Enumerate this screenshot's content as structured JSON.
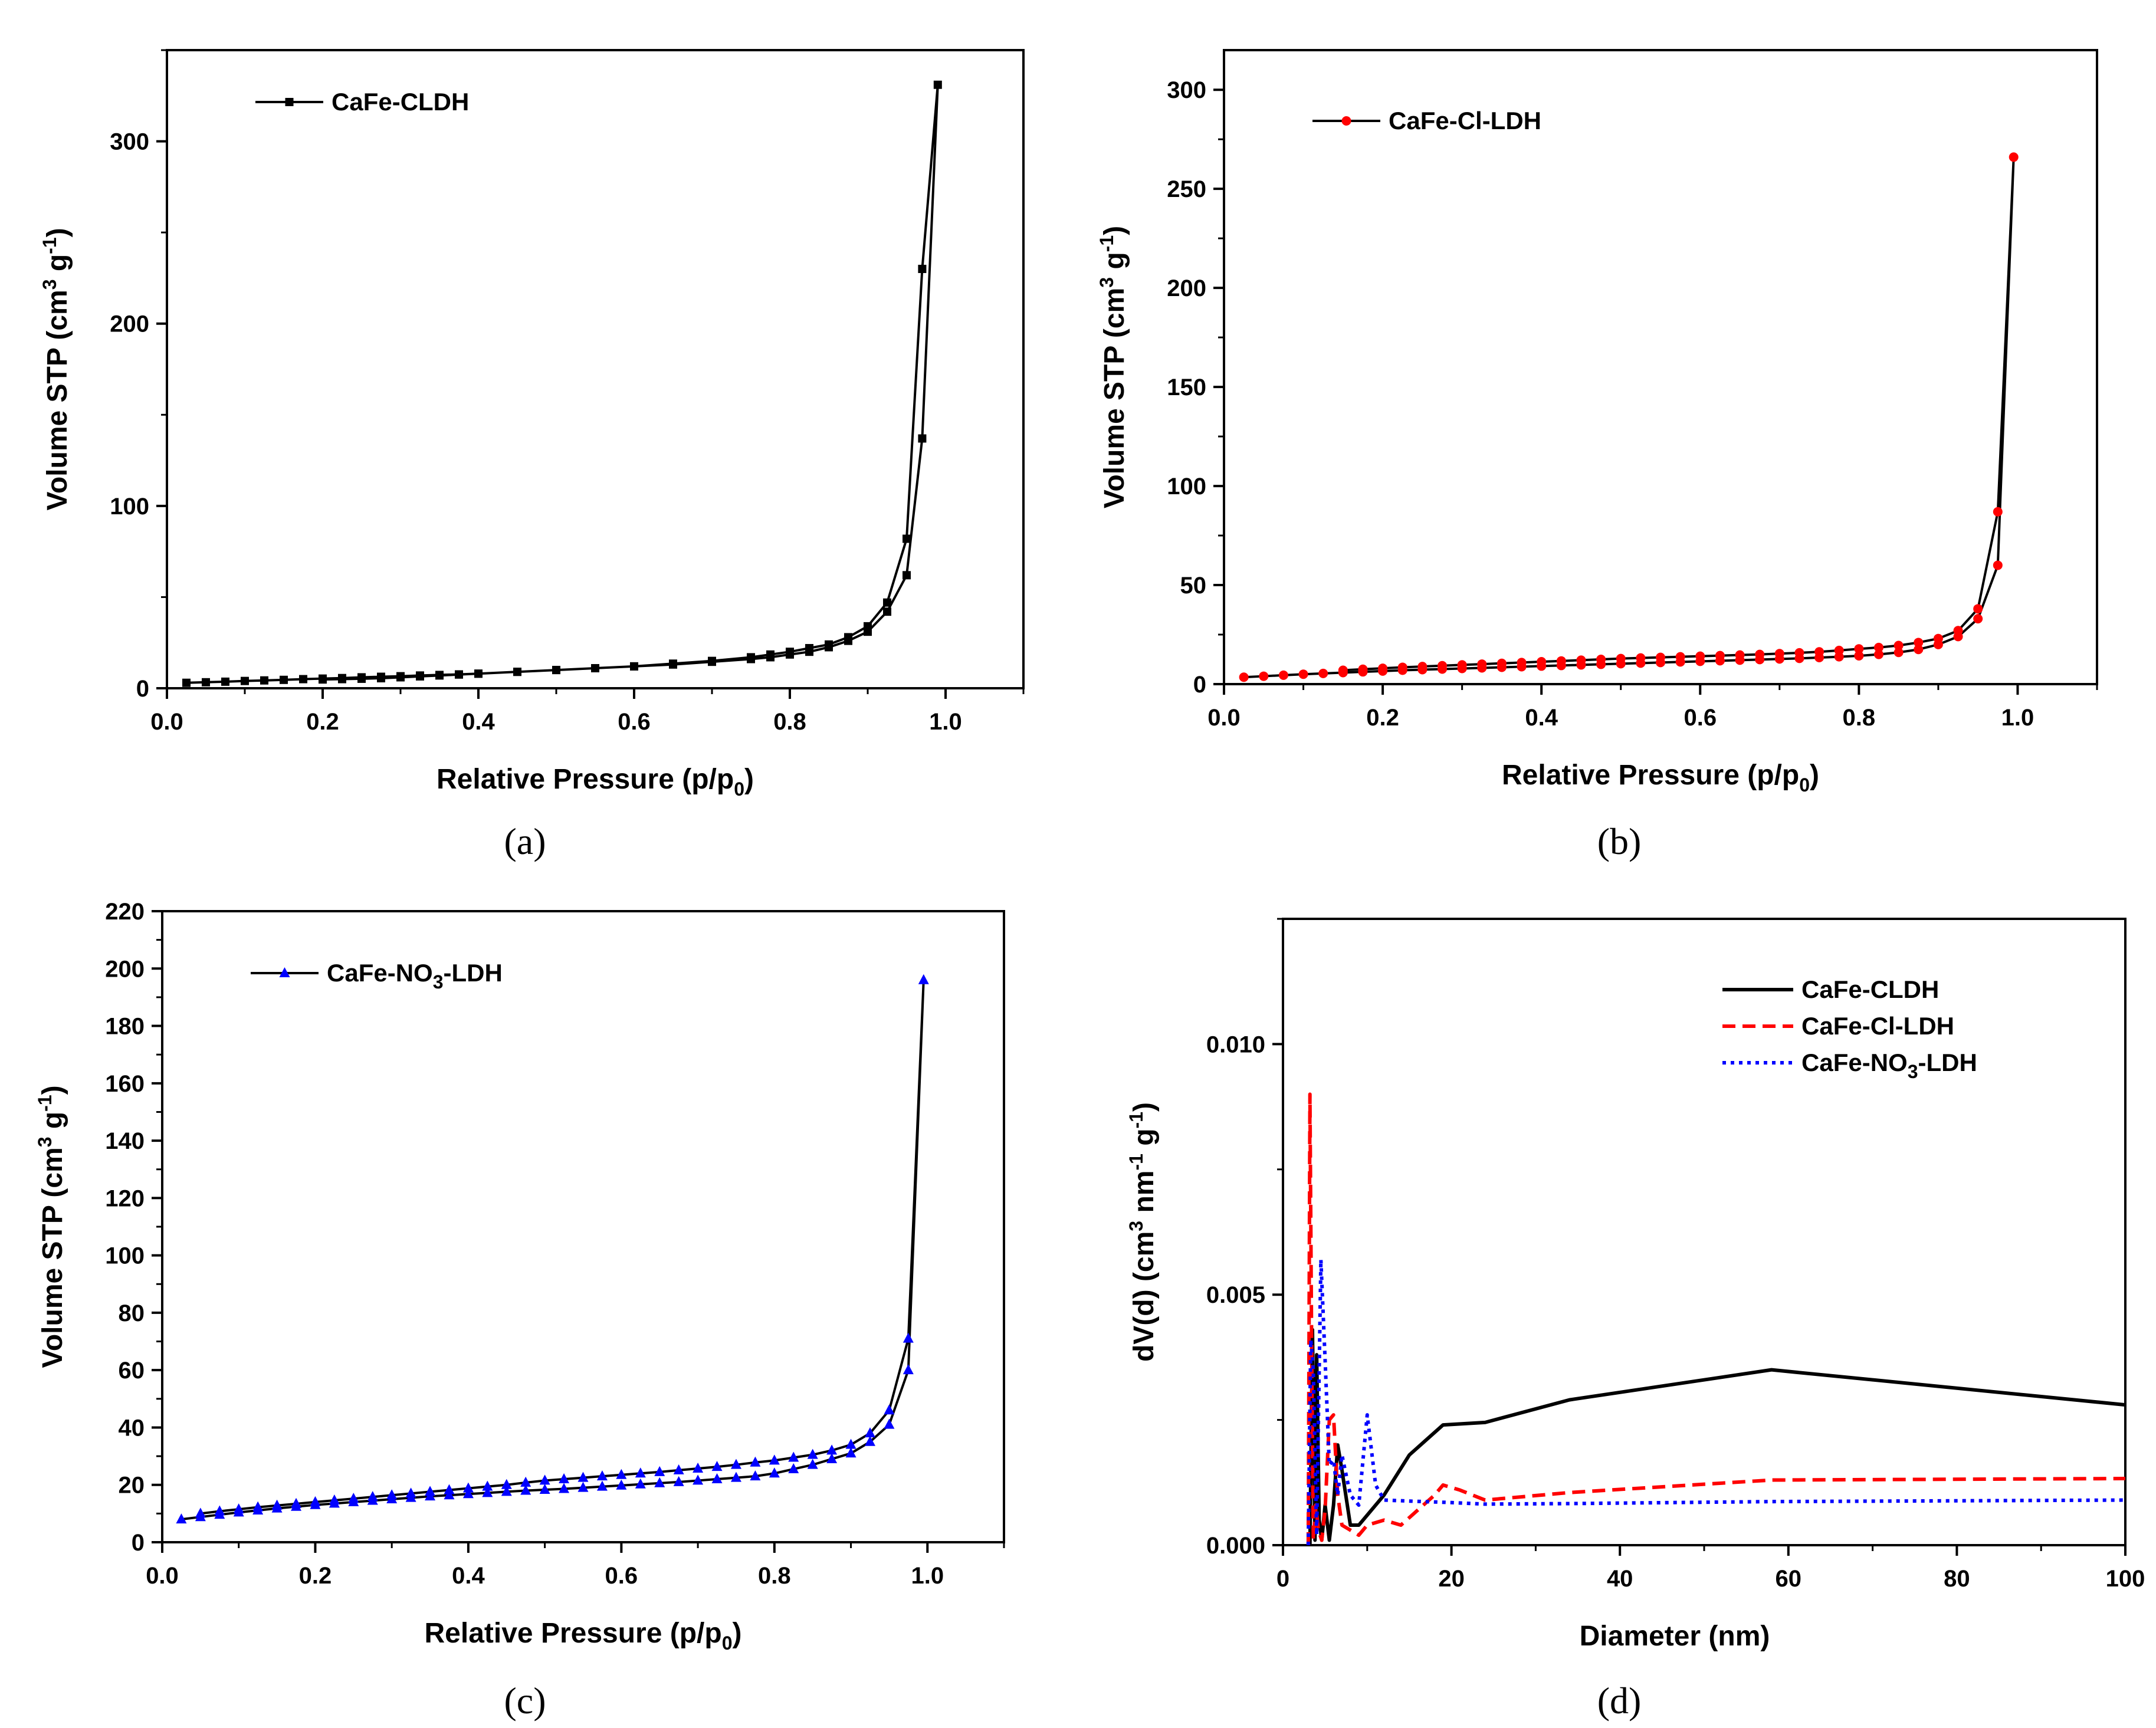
{
  "chart_data": [
    {
      "panel": "(a)",
      "type": "line",
      "xlabel": "Relative Pressure (p/p0)",
      "ylabel": "Volume STP (cm3 g-1)",
      "xlim": [
        0.0,
        1.1
      ],
      "ylim": [
        0,
        350
      ],
      "xticks": [
        "0.0",
        "0.2",
        "0.4",
        "0.6",
        "0.8",
        "1.0"
      ],
      "yticks": [
        "0",
        "100",
        "200",
        "300"
      ],
      "marker": "square",
      "color": "#000000",
      "legend": "top-left",
      "series": [
        {
          "name": "CaFe-CLDH",
          "label": "CaFe-CLDH",
          "x": [
            0.025,
            0.05,
            0.075,
            0.1,
            0.125,
            0.15,
            0.175,
            0.2,
            0.225,
            0.25,
            0.275,
            0.3,
            0.325,
            0.35,
            0.375,
            0.4,
            0.45,
            0.5,
            0.55,
            0.6,
            0.65,
            0.7,
            0.75,
            0.775,
            0.8,
            0.825,
            0.85,
            0.875,
            0.9,
            0.925,
            0.95,
            0.97,
            0.99,
            0.97,
            0.95,
            0.925,
            0.9,
            0.875,
            0.85,
            0.825,
            0.8,
            0.775,
            0.75,
            0.7,
            0.65,
            0.6,
            0.55,
            0.5,
            0.45,
            0.4,
            0.375,
            0.35,
            0.325,
            0.3,
            0.275,
            0.25,
            0.225,
            0.2
          ],
          "y": [
            3,
            3.3,
            3.6,
            4,
            4.3,
            4.6,
            5,
            5.3,
            5.6,
            6,
            6.3,
            6.6,
            7,
            7.3,
            7.6,
            8,
            9,
            10,
            11,
            12,
            13,
            14.5,
            16,
            17,
            18.5,
            20,
            22.5,
            26,
            31,
            42,
            62,
            137,
            331,
            230,
            82,
            47,
            34,
            28,
            24,
            22,
            20,
            18.5,
            17,
            15,
            13.5,
            12,
            11,
            10,
            9,
            8,
            7.5,
            7,
            6.5,
            6,
            5.5,
            5.2,
            5,
            4.8
          ]
        }
      ]
    },
    {
      "panel": "(b)",
      "type": "line",
      "xlabel": "Relative Pressure (p/p0)",
      "ylabel": "Volume STP (cm3 g-1)",
      "xlim": [
        0.0,
        1.1
      ],
      "ylim": [
        0,
        320
      ],
      "xticks": [
        "0.0",
        "0.2",
        "0.4",
        "0.6",
        "0.8",
        "1.0"
      ],
      "yticks": [
        "0",
        "50",
        "100",
        "150",
        "200",
        "250",
        "300"
      ],
      "marker": "circle",
      "color": "#ff0000",
      "legend": "top-left",
      "series": [
        {
          "name": "CaFe-Cl-LDH",
          "label": "CaFe-Cl-LDH",
          "x": [
            0.025,
            0.05,
            0.075,
            0.1,
            0.125,
            0.15,
            0.175,
            0.2,
            0.225,
            0.25,
            0.275,
            0.3,
            0.325,
            0.35,
            0.375,
            0.4,
            0.425,
            0.45,
            0.475,
            0.5,
            0.525,
            0.55,
            0.575,
            0.6,
            0.625,
            0.65,
            0.675,
            0.7,
            0.725,
            0.75,
            0.775,
            0.8,
            0.825,
            0.85,
            0.875,
            0.9,
            0.925,
            0.95,
            0.975,
            0.995,
            0.975,
            0.95,
            0.925,
            0.9,
            0.875,
            0.85,
            0.825,
            0.8,
            0.775,
            0.75,
            0.725,
            0.7,
            0.675,
            0.65,
            0.625,
            0.6,
            0.575,
            0.55,
            0.525,
            0.5,
            0.475,
            0.45,
            0.425,
            0.4,
            0.375,
            0.35,
            0.325,
            0.3,
            0.275,
            0.25,
            0.225,
            0.2,
            0.175,
            0.15
          ],
          "y": [
            3.5,
            4,
            4.5,
            5,
            5.4,
            5.8,
            6.2,
            6.6,
            7,
            7.3,
            7.6,
            7.9,
            8.2,
            8.5,
            8.8,
            9.1,
            9.4,
            9.7,
            10,
            10.3,
            10.6,
            10.9,
            11.2,
            11.5,
            11.8,
            12.1,
            12.4,
            12.7,
            13,
            13.4,
            13.8,
            14.3,
            15,
            16,
            17.5,
            20,
            24,
            33,
            60,
            266,
            87,
            38,
            27,
            23,
            21,
            19.5,
            18.5,
            17.8,
            17,
            16.3,
            15.8,
            15.4,
            15,
            14.7,
            14.4,
            14.1,
            13.8,
            13.5,
            13.2,
            12.9,
            12.5,
            12.1,
            11.7,
            11.3,
            10.9,
            10.5,
            10.1,
            9.7,
            9.3,
            8.9,
            8.5,
            8,
            7.5,
            7
          ]
        }
      ]
    },
    {
      "panel": "(c)",
      "type": "line",
      "xlabel": "Relative Pressure (p/p0)",
      "ylabel": "Volume STP (cm3 g-1)",
      "xlim": [
        0.0,
        1.1
      ],
      "ylim": [
        0,
        220
      ],
      "xticks": [
        "0.0",
        "0.2",
        "0.4",
        "0.6",
        "0.8",
        "1.0"
      ],
      "yticks": [
        "0",
        "20",
        "40",
        "60",
        "80",
        "100",
        "120",
        "140",
        "160",
        "180",
        "200",
        "220"
      ],
      "marker": "triangle",
      "color": "#0000ff",
      "legend": "top-left",
      "series": [
        {
          "name": "CaFe-NO3-LDH",
          "label": "CaFe-NO",
          "label_sub": "3",
          "label_tail": "-LDH",
          "x": [
            0.025,
            0.05,
            0.075,
            0.1,
            0.125,
            0.15,
            0.175,
            0.2,
            0.225,
            0.25,
            0.275,
            0.3,
            0.325,
            0.35,
            0.375,
            0.4,
            0.425,
            0.45,
            0.475,
            0.5,
            0.525,
            0.55,
            0.575,
            0.6,
            0.625,
            0.65,
            0.675,
            0.7,
            0.725,
            0.75,
            0.775,
            0.8,
            0.825,
            0.85,
            0.875,
            0.9,
            0.925,
            0.95,
            0.975,
            0.995,
            0.975,
            0.95,
            0.925,
            0.9,
            0.875,
            0.85,
            0.825,
            0.8,
            0.775,
            0.75,
            0.725,
            0.7,
            0.675,
            0.65,
            0.625,
            0.6,
            0.575,
            0.55,
            0.525,
            0.5,
            0.475,
            0.45,
            0.425,
            0.4,
            0.375,
            0.35,
            0.325,
            0.3,
            0.275,
            0.25,
            0.225,
            0.2,
            0.175,
            0.15,
            0.125,
            0.1,
            0.075,
            0.05
          ],
          "y": [
            8,
            8.8,
            9.6,
            10.4,
            11.1,
            11.8,
            12.4,
            13,
            13.5,
            14,
            14.5,
            15,
            15.5,
            16,
            16.4,
            16.8,
            17.2,
            17.6,
            18,
            18.3,
            18.6,
            19,
            19.4,
            19.8,
            20.2,
            20.6,
            21,
            21.5,
            22,
            22.5,
            23,
            24,
            25.5,
            27,
            29,
            31,
            35,
            41,
            60,
            196,
            71,
            46,
            38,
            34,
            32,
            30.5,
            29.5,
            28.5,
            27.8,
            27,
            26.3,
            25.7,
            25.1,
            24.5,
            24,
            23.5,
            23,
            22.5,
            22,
            21.5,
            20.8,
            20,
            19.4,
            18.8,
            18.2,
            17.6,
            17,
            16.4,
            15.8,
            15.2,
            14.6,
            14,
            13.4,
            12.8,
            12.2,
            11.5,
            10.8,
            10
          ]
        }
      ]
    },
    {
      "panel": "(d)",
      "type": "line",
      "xlabel": "Diameter (nm)",
      "ylabel": "dV(d) (cm3 nm-1 g-1)",
      "xlim": [
        0,
        100
      ],
      "ylim": [
        0,
        0.0125
      ],
      "xticks": [
        "0",
        "20",
        "40",
        "60",
        "80",
        "100"
      ],
      "yticks": [
        "0.000",
        "0.005",
        "0.010"
      ],
      "legend": "top-right",
      "series": [
        {
          "name": "CaFe-CLDH",
          "label": "CaFe-CLDH",
          "style": "solid",
          "color": "#000000",
          "x": [
            3.2,
            3.5,
            3.8,
            4.0,
            4.3,
            4.6,
            5.0,
            5.5,
            6.0,
            6.5,
            7.0,
            8.0,
            9.0,
            10.0,
            12.0,
            15.0,
            19.0,
            24.0,
            34.0,
            58.0,
            100.0
          ],
          "y": [
            0.0,
            0.0043,
            0.0001,
            0.0038,
            0.0005,
            0.0001,
            0.0008,
            0.0001,
            0.0008,
            0.002,
            0.0015,
            0.0004,
            0.0004,
            0.0006,
            0.001,
            0.0018,
            0.0024,
            0.00245,
            0.0029,
            0.0035,
            0.0028
          ]
        },
        {
          "name": "CaFe-Cl-LDH",
          "label": "CaFe-Cl-LDH",
          "style": "dashed",
          "color": "#ff0000",
          "x": [
            3.0,
            3.2,
            3.4,
            3.6,
            3.9,
            4.2,
            4.6,
            5.0,
            5.5,
            6.0,
            6.5,
            7.0,
            8.0,
            9.0,
            10.0,
            12.0,
            14.0,
            16.0,
            18.0,
            19.0,
            21.0,
            24.0,
            34.0,
            58.0,
            100.0
          ],
          "y": [
            0.0,
            0.009,
            0.004,
            0.0001,
            0.0008,
            0.0003,
            0.0001,
            0.0007,
            0.0025,
            0.0026,
            0.001,
            0.0004,
            0.0003,
            0.0002,
            0.0004,
            0.0005,
            0.0004,
            0.0007,
            0.001,
            0.0012,
            0.0011,
            0.0009,
            0.00105,
            0.0013,
            0.00133
          ]
        },
        {
          "name": "CaFe-NO3-LDH",
          "label": "CaFe-NO",
          "label_sub": "3",
          "label_tail": "-LDH",
          "style": "dotted",
          "color": "#0000ff",
          "x": [
            3.0,
            3.3,
            3.6,
            4.0,
            4.5,
            5.0,
            5.5,
            6.0,
            6.5,
            7.0,
            8.0,
            9.0,
            10.0,
            11.0,
            12.0,
            15.0,
            20.0,
            24.0,
            34.0,
            58.0,
            100.0
          ],
          "y": [
            0.0,
            0.0041,
            0.0035,
            0.0002,
            0.0057,
            0.0037,
            0.0016,
            0.0017,
            0.001,
            0.0018,
            0.001,
            0.0008,
            0.0026,
            0.0012,
            0.0009,
            0.00088,
            0.00085,
            0.00082,
            0.00083,
            0.00087,
            0.0009
          ]
        }
      ]
    }
  ],
  "panel_labels": [
    "(a)",
    "(b)",
    "(c)",
    "(d)"
  ],
  "titles": {
    "ylabel_volume": "Volume STP (cm",
    "ylabel_volume_sup1": "3",
    "ylabel_volume_mid": " g",
    "ylabel_volume_sup2": "-1",
    "ylabel_volume_end": ")",
    "xlabel_pressure": "Relative Pressure (p/p",
    "xlabel_pressure_sub": "0",
    "xlabel_pressure_end": ")",
    "ylabel_dv": "dV(d) (cm",
    "ylabel_dv_sup1": "3",
    "ylabel_dv_mid1": " nm",
    "ylabel_dv_sup2": "-1",
    "ylabel_dv_mid2": " g",
    "ylabel_dv_sup3": "-1",
    "ylabel_dv_end": ")",
    "xlabel_diameter": "Diameter (nm)"
  }
}
